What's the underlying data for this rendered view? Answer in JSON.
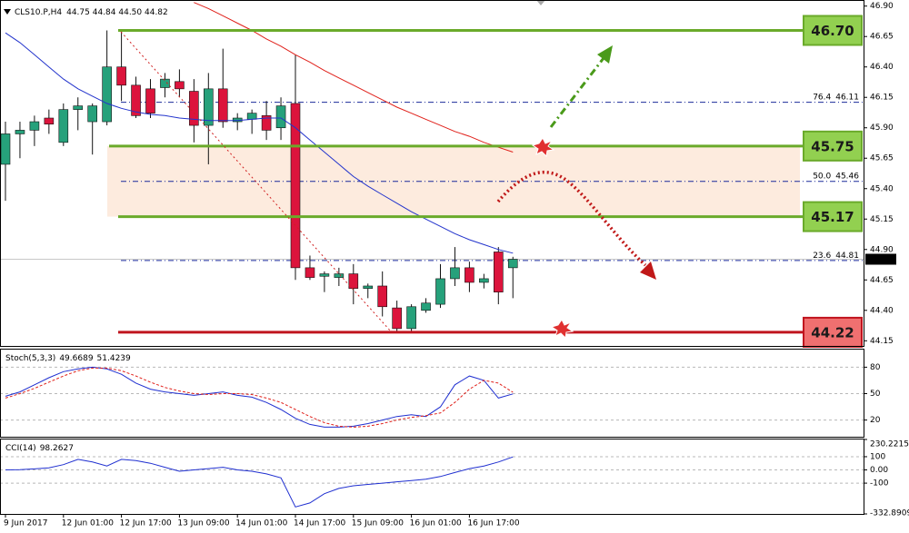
{
  "chart_data": [
    {
      "type": "candlestick",
      "title": "CLS10.P,H4",
      "ohlc_label": "44.75 44.84 44.50 44.82",
      "categories": [
        "9 Jun 2017",
        null,
        null,
        null,
        "12 Jun 01:00",
        null,
        null,
        null,
        "12 Jun 17:00",
        null,
        null,
        null,
        "13 Jun 09:00",
        null,
        null,
        null,
        "14 Jun 01:00",
        null,
        null,
        null,
        "14 Jun 17:00",
        null,
        null,
        null,
        "15 Jun 09:00",
        null,
        null,
        null,
        "16 Jun 01:00",
        null,
        null,
        null,
        "16 Jun 17:00",
        null,
        null,
        null
      ],
      "open": [
        45.6,
        45.85,
        45.88,
        45.98,
        45.78,
        46.05,
        45.95,
        45.95,
        46.4,
        46.25,
        46.22,
        46.23,
        46.28,
        46.2,
        45.92,
        46.22,
        45.95,
        45.97,
        46.0,
        45.9,
        46.1,
        44.75,
        44.68,
        44.67,
        44.7,
        44.58,
        44.6,
        44.42,
        44.25,
        44.4,
        44.45,
        44.66,
        44.75,
        44.63,
        44.88,
        44.75
      ],
      "high": [
        45.95,
        45.95,
        46.0,
        46.05,
        46.1,
        46.15,
        46.1,
        46.7,
        46.7,
        46.32,
        46.3,
        46.35,
        46.38,
        46.3,
        46.35,
        46.55,
        46.02,
        46.05,
        46.12,
        46.15,
        46.5,
        44.85,
        44.72,
        44.75,
        44.78,
        44.62,
        44.72,
        44.48,
        44.45,
        44.5,
        44.78,
        44.92,
        44.8,
        44.7,
        44.92,
        44.84
      ],
      "low": [
        45.3,
        45.65,
        45.75,
        45.85,
        45.75,
        45.88,
        45.68,
        45.92,
        46.12,
        45.98,
        45.98,
        46.15,
        46.15,
        45.78,
        45.6,
        45.9,
        45.88,
        45.85,
        45.8,
        45.8,
        44.65,
        44.65,
        44.55,
        44.6,
        44.45,
        44.5,
        44.35,
        44.22,
        44.22,
        44.38,
        44.42,
        44.6,
        44.55,
        44.58,
        44.45,
        44.5
      ],
      "close": [
        45.85,
        45.88,
        45.95,
        45.93,
        46.05,
        46.08,
        46.08,
        46.4,
        46.25,
        46.0,
        46.02,
        46.3,
        46.22,
        45.92,
        46.22,
        45.95,
        45.98,
        46.02,
        45.88,
        46.08,
        44.75,
        44.67,
        44.7,
        44.7,
        44.58,
        44.6,
        44.43,
        44.25,
        44.43,
        44.46,
        44.66,
        44.75,
        44.63,
        44.66,
        44.55,
        44.82
      ],
      "up_color": "#26a17b",
      "down_color": "#dc143c",
      "series": [
        {
          "color": "#e0201a",
          "values": [
            null,
            null,
            null,
            null,
            null,
            null,
            null,
            null,
            null,
            null,
            null,
            null,
            null,
            46.93,
            46.88,
            46.82,
            46.76,
            46.7,
            46.63,
            46.57,
            46.5,
            46.44,
            46.37,
            46.31,
            46.25,
            46.19,
            46.13,
            46.07,
            46.02,
            45.97,
            45.92,
            45.87,
            45.83,
            45.78,
            45.74,
            45.7
          ]
        },
        {
          "color": "#2233cc",
          "values": [
            46.68,
            46.6,
            46.5,
            46.4,
            46.3,
            46.22,
            46.16,
            46.1,
            46.06,
            46.03,
            46.01,
            46.0,
            45.98,
            45.97,
            45.96,
            45.96,
            45.96,
            45.97,
            45.98,
            45.98,
            45.9,
            45.8,
            45.7,
            45.6,
            45.5,
            45.42,
            45.35,
            45.28,
            45.21,
            45.15,
            45.09,
            45.03,
            44.98,
            44.94,
            44.9,
            44.87
          ]
        }
      ],
      "ylim": [
        44.1,
        46.95
      ],
      "yticks": [
        {
          "value": 46.9,
          "label": "46.90"
        },
        {
          "value": 46.65,
          "label": "46.65"
        },
        {
          "value": 46.4,
          "label": "46.40"
        },
        {
          "value": 46.15,
          "label": "46.15"
        },
        {
          "value": 45.9,
          "label": "45.90"
        },
        {
          "value": 45.65,
          "label": "45.65"
        },
        {
          "value": 45.4,
          "label": "45.40"
        },
        {
          "value": 45.15,
          "label": "45.15"
        },
        {
          "value": 44.9,
          "label": "44.90"
        },
        {
          "value": 44.65,
          "label": "44.65"
        },
        {
          "value": 44.4,
          "label": "44.40"
        },
        {
          "value": 44.15,
          "label": "44.15"
        }
      ],
      "levels": [
        {
          "value": 46.7,
          "label": "46.70",
          "color": "#6aaa2a",
          "box_color": "#92d050"
        },
        {
          "value": 45.75,
          "label": "45.75",
          "color": "#6aaa2a",
          "box_color": "#92d050"
        },
        {
          "value": 45.17,
          "label": "45.17",
          "color": "#6aaa2a",
          "box_color": "#92d050"
        },
        {
          "value": 44.22,
          "label": "44.22",
          "color": "#c0141e",
          "box_color": "#f07070"
        }
      ],
      "fib": [
        {
          "ratio": "76.4",
          "value": 46.11
        },
        {
          "ratio": "50.0",
          "value": 45.46
        },
        {
          "ratio": "23.6",
          "value": 44.81
        }
      ],
      "last_price": 44.82
    },
    {
      "type": "line",
      "title": "Stoch(5,3,3)",
      "series": [
        {
          "color": "#1f2fd0",
          "values": [
            47,
            52,
            60,
            68,
            75,
            78,
            80,
            78,
            72,
            62,
            55,
            52,
            50,
            48,
            50,
            52,
            48,
            46,
            40,
            32,
            22,
            15,
            12,
            12,
            13,
            16,
            20,
            24,
            26,
            24,
            35,
            60,
            70,
            65,
            45,
            49.6689
          ]
        },
        {
          "color": "#e0201a",
          "dashed": true,
          "values": [
            45,
            50,
            56,
            63,
            70,
            76,
            79,
            79,
            76,
            70,
            63,
            57,
            53,
            50,
            49,
            50,
            50,
            49,
            45,
            40,
            32,
            24,
            17,
            13,
            12,
            13,
            16,
            20,
            23,
            25,
            28,
            40,
            55,
            65,
            62,
            51.4239
          ]
        }
      ],
      "ylim": [
        0,
        100
      ],
      "yticks": [
        80,
        50,
        20
      ]
    },
    {
      "type": "line",
      "title": "CCI(14)",
      "series": [
        {
          "color": "#1f2fd0",
          "values": [
            0,
            2,
            8,
            15,
            40,
            80,
            60,
            30,
            80,
            70,
            50,
            20,
            -10,
            0,
            10,
            20,
            0,
            -10,
            -30,
            -60,
            -280,
            -250,
            -180,
            -140,
            -120,
            -110,
            -100,
            -90,
            -80,
            -70,
            -50,
            -20,
            10,
            30,
            60,
            98.2627
          ]
        }
      ],
      "ylim": [
        -332.8909,
        230.2215
      ],
      "yticks": [
        230.2215,
        100,
        {
          "value": 0,
          "label": "0.00"
        },
        -100,
        -332.8909
      ]
    }
  ]
}
